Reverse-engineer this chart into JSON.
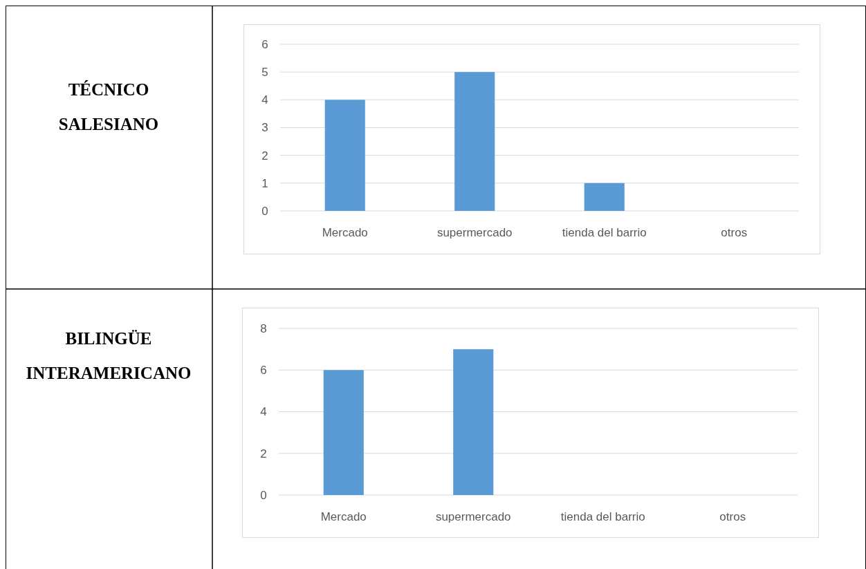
{
  "chart_data": [
    {
      "type": "bar",
      "title": "TÉCNICO SALESIANO",
      "categories": [
        "Mercado",
        "supermercado",
        "tienda del barrio",
        "otros"
      ],
      "values": [
        4,
        5,
        1,
        0
      ],
      "color": "#5b9bd5",
      "ylim": [
        0,
        6
      ],
      "yticks": [
        0,
        1,
        2,
        3,
        4,
        5,
        6
      ],
      "grid": "y"
    },
    {
      "type": "bar",
      "title": "BILINGÜE INTERAMERICANO",
      "categories": [
        "Mercado",
        "supermercado",
        "tienda del barrio",
        "otros"
      ],
      "values": [
        6,
        7,
        0,
        0
      ],
      "color": "#5b9bd5",
      "ylim": [
        0,
        8
      ],
      "yticks": [
        0,
        2,
        4,
        6,
        8
      ],
      "grid": "y"
    }
  ]
}
